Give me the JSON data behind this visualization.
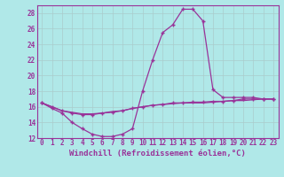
{
  "x": [
    0,
    1,
    2,
    3,
    4,
    5,
    6,
    7,
    8,
    9,
    10,
    11,
    12,
    13,
    14,
    15,
    16,
    17,
    18,
    19,
    20,
    21,
    22,
    23
  ],
  "curve1": [
    16.5,
    15.8,
    15.2,
    14.0,
    13.2,
    12.5,
    12.2,
    12.2,
    12.5,
    13.2,
    18.0,
    22.0,
    25.5,
    26.5,
    28.5,
    28.5,
    27.0,
    18.2,
    17.2,
    17.2,
    17.2,
    17.2,
    17.0,
    17.0
  ],
  "curve2": [
    16.5,
    16.0,
    15.5,
    15.2,
    15.0,
    15.0,
    15.2,
    15.3,
    15.5,
    15.8,
    16.0,
    16.2,
    16.3,
    16.5,
    16.5,
    16.6,
    16.6,
    16.7,
    16.7,
    16.8,
    17.0,
    17.0,
    17.0,
    17.0
  ],
  "curve3": [
    16.5,
    16.0,
    15.5,
    15.3,
    15.1,
    15.1,
    15.2,
    15.4,
    15.5,
    15.8,
    16.0,
    16.2,
    16.3,
    16.4,
    16.5,
    16.5,
    16.5,
    16.6,
    16.7,
    16.8,
    16.8,
    16.9,
    17.0,
    17.0
  ],
  "line_color": "#993399",
  "bg_color": "#b0e8e8",
  "grid_color": "#ccdddd",
  "xlabel": "Windchill (Refroidissement éolien,°C)",
  "ylim": [
    12,
    29
  ],
  "xlim": [
    -0.5,
    23.5
  ],
  "yticks": [
    12,
    14,
    16,
    18,
    20,
    22,
    24,
    26,
    28
  ],
  "xticks": [
    0,
    1,
    2,
    3,
    4,
    5,
    6,
    7,
    8,
    9,
    10,
    11,
    12,
    13,
    14,
    15,
    16,
    17,
    18,
    19,
    20,
    21,
    22,
    23
  ],
  "tick_fontsize": 5.5,
  "xlabel_fontsize": 6.5,
  "marker": "+"
}
